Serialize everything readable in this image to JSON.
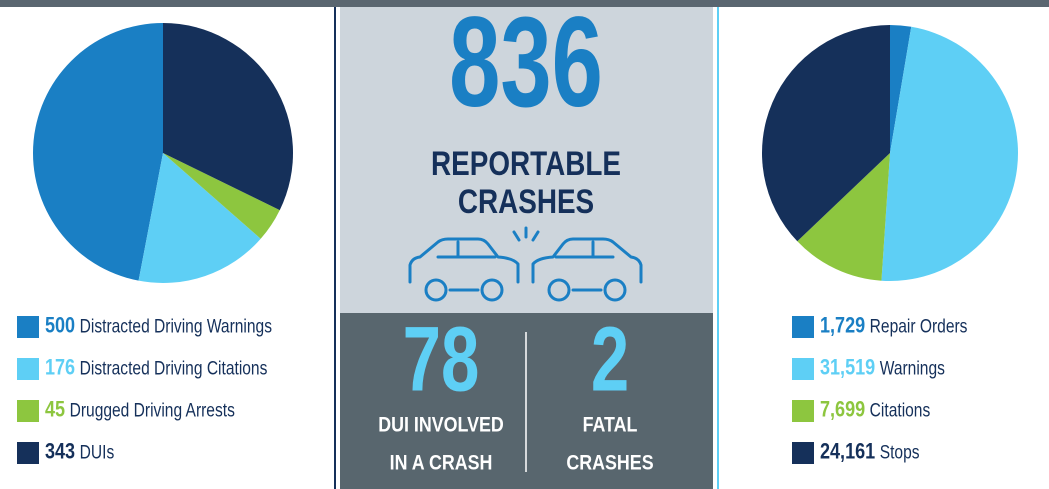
{
  "chart_data": [
    {
      "type": "pie",
      "categories": [
        "Distracted Driving Warnings",
        "Distracted Driving Citations",
        "Drugged Driving Arrests",
        "DUIs"
      ],
      "values": [
        500,
        176,
        45,
        343
      ],
      "colors": [
        "#1a7fc4",
        "#5ecff5",
        "#8dc63f",
        "#15305a"
      ],
      "direction": "counterclockwise"
    },
    {
      "type": "pie",
      "categories": [
        "Repair Orders",
        "Warnings",
        "Citations",
        "Stops"
      ],
      "values": [
        1729,
        31519,
        7699,
        24161
      ],
      "value_labels": [
        "1,729",
        "31,519",
        "7,699",
        "24,161"
      ],
      "colors": [
        "#1a7fc4",
        "#5ecff5",
        "#8dc63f",
        "#15305a"
      ],
      "direction": "clockwise"
    }
  ],
  "stats": [
    {
      "value": 836,
      "label_lines": [
        "REPORTABLE",
        "CRASHES"
      ]
    },
    {
      "value": 78,
      "label_lines": [
        "DUI INVOLVED",
        "IN A CRASH"
      ]
    },
    {
      "value": 2,
      "label_lines": [
        "FATAL",
        "CRASHES"
      ]
    }
  ]
}
